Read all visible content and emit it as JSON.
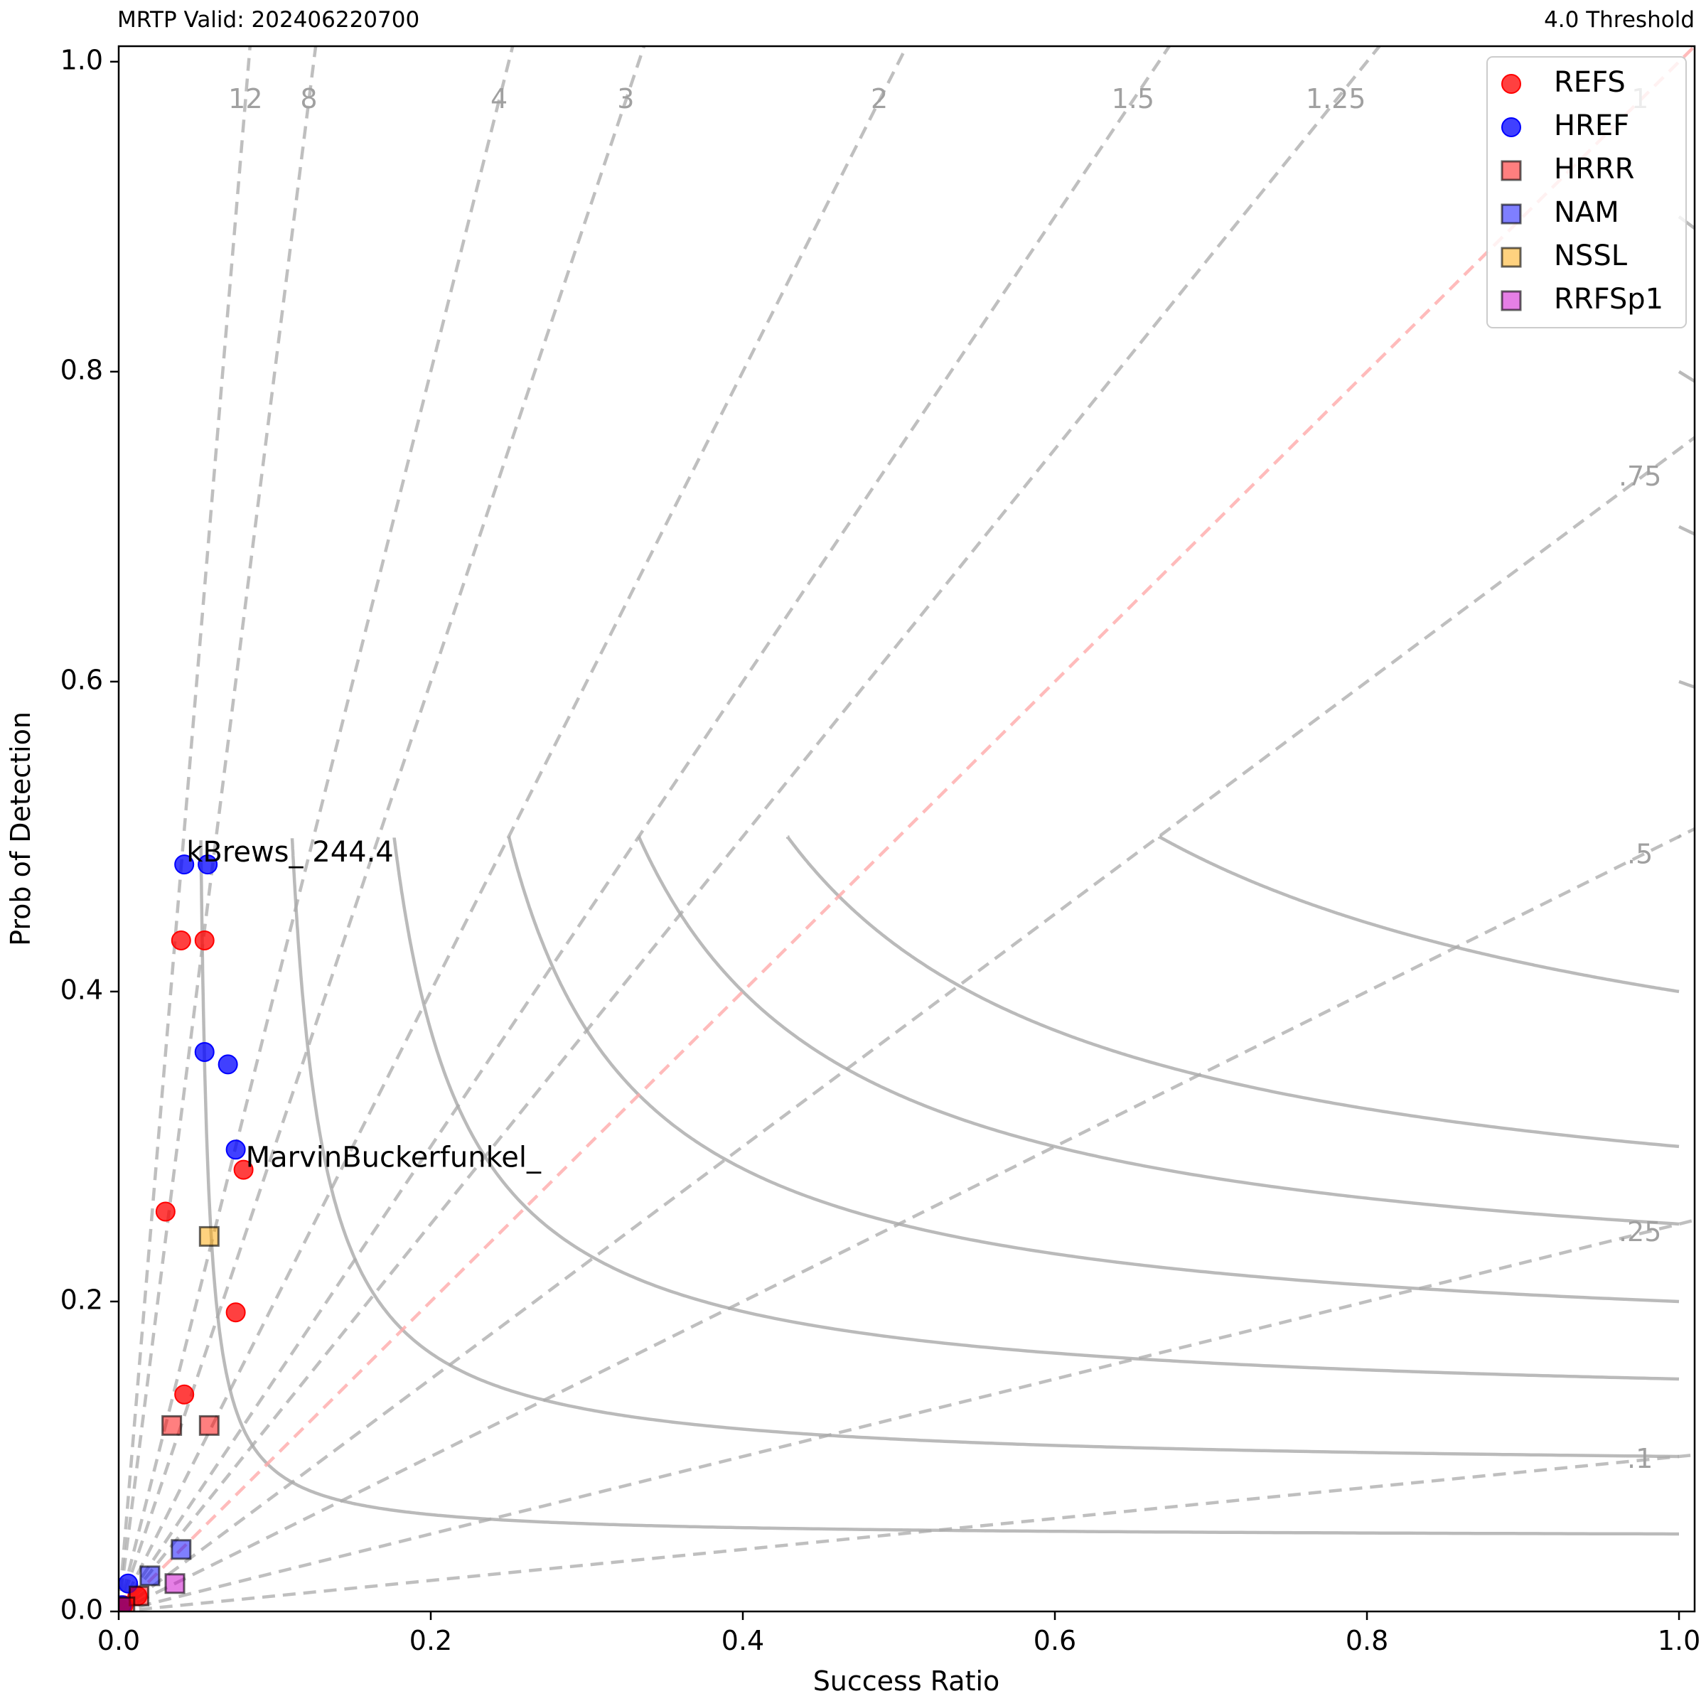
{
  "header": {
    "left_text": "MRTP Valid: 202406220700",
    "right_text": "4.0 Threshold"
  },
  "chart_data": {
    "type": "scatter",
    "xlabel": "Success Ratio",
    "ylabel": "Prob of Detection",
    "xlim": [
      0,
      1.01
    ],
    "ylim": [
      0,
      1.01
    ],
    "x_ticks": [
      0.0,
      0.2,
      0.4,
      0.6,
      0.8,
      1.0
    ],
    "y_ticks": [
      0.0,
      0.2,
      0.4,
      0.6,
      0.8,
      1.0
    ],
    "x_tick_labels": [
      "0.0",
      "0.2",
      "0.4",
      "0.6",
      "0.8",
      "1.0"
    ],
    "y_tick_labels": [
      "0.0",
      "0.2",
      "0.4",
      "0.6",
      "0.8",
      "1.0"
    ],
    "grid": false,
    "legend_position": "top-right",
    "csi_contours": [
      0.05,
      0.1,
      0.15,
      0.2,
      0.25,
      0.3,
      0.4,
      0.5,
      0.6,
      0.7,
      0.8,
      0.9
    ],
    "csi_labels": [
      {
        "text": ".1",
        "value": 0.1
      },
      {
        "text": ".25",
        "value": 0.25
      },
      {
        "text": ".5",
        "value": 0.5
      },
      {
        "text": ".75",
        "value": 0.75
      }
    ],
    "bias_lines": [
      {
        "text": "12",
        "value": 12
      },
      {
        "text": "8",
        "value": 8
      },
      {
        "text": "4",
        "value": 4
      },
      {
        "text": "3",
        "value": 3
      },
      {
        "text": "2",
        "value": 2
      },
      {
        "text": "1.5",
        "value": 1.5
      },
      {
        "text": "1.25",
        "value": 1.25
      },
      {
        "text": "1",
        "value": 1
      },
      {
        "text": ".75",
        "value": 0.75
      },
      {
        "text": ".5",
        "value": 0.5
      },
      {
        "text": ".25",
        "value": 0.25
      },
      {
        "text": ".1",
        "value": 0.1
      }
    ],
    "colors": {
      "csi_line": "#a9a9a9",
      "bias_line": "#a9a9a9",
      "unbiased_line": "#ffaaaa",
      "contour_label": "#a0a0a0"
    },
    "series": [
      {
        "name": "REFS",
        "marker": "circle",
        "color": "#ff0000",
        "points": [
          [
            0.04,
            0.433
          ],
          [
            0.055,
            0.433
          ],
          [
            0.03,
            0.258
          ],
          [
            0.08,
            0.285
          ],
          [
            0.075,
            0.193
          ],
          [
            0.042,
            0.14
          ],
          [
            0.012,
            0.01
          ],
          [
            0.003,
            0.004
          ]
        ]
      },
      {
        "name": "HREF",
        "marker": "circle",
        "color": "#0000ff",
        "points": [
          [
            0.042,
            0.482
          ],
          [
            0.057,
            0.482
          ],
          [
            0.055,
            0.361
          ],
          [
            0.07,
            0.353
          ],
          [
            0.075,
            0.298
          ],
          [
            0.006,
            0.018
          ],
          [
            0.002,
            0.004
          ]
        ]
      },
      {
        "name": "HRRR",
        "marker": "square",
        "color": "#ff0000",
        "points": [
          [
            0.034,
            0.12
          ],
          [
            0.058,
            0.12
          ],
          [
            0.013,
            0.01
          ],
          [
            0.004,
            0.003
          ]
        ]
      },
      {
        "name": "NAM",
        "marker": "square",
        "color": "#0000ff",
        "points": [
          [
            0.04,
            0.04
          ],
          [
            0.02,
            0.023
          ]
        ]
      },
      {
        "name": "NSSL",
        "marker": "square",
        "color": "#ffa500",
        "points": [
          [
            0.058,
            0.242
          ]
        ]
      },
      {
        "name": "RRFSp1",
        "marker": "square",
        "color": "#cc00cc",
        "points": [
          [
            0.036,
            0.018
          ]
        ]
      }
    ],
    "annotations": [
      {
        "text": "kBrews_ 244.4",
        "x": 0.042,
        "y": 0.482
      },
      {
        "text": "MarvinBuckerfunkel_",
        "x": 0.08,
        "y": 0.285
      }
    ]
  }
}
